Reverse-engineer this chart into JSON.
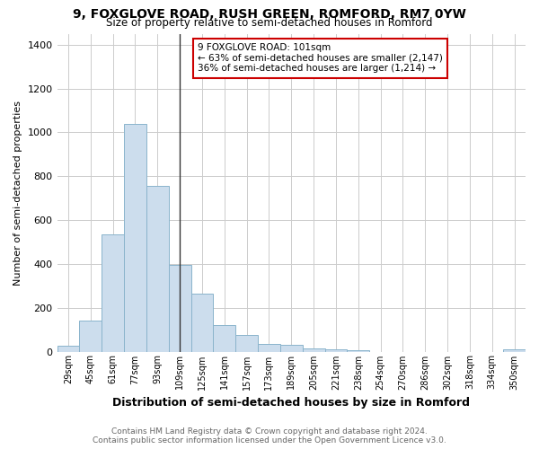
{
  "title": "9, FOXGLOVE ROAD, RUSH GREEN, ROMFORD, RM7 0YW",
  "subtitle": "Size of property relative to semi-detached houses in Romford",
  "xlabel": "Distribution of semi-detached houses by size in Romford",
  "ylabel": "Number of semi-detached properties",
  "footer_line1": "Contains HM Land Registry data © Crown copyright and database right 2024.",
  "footer_line2": "Contains public sector information licensed under the Open Government Licence v3.0.",
  "annotation_line1": "9 FOXGLOVE ROAD: 101sqm",
  "annotation_line2": "← 63% of semi-detached houses are smaller (2,147)",
  "annotation_line3": "36% of semi-detached houses are larger (1,214) →",
  "property_size_idx": 5,
  "bar_color": "#ccdded",
  "bar_edge_color": "#8ab4cc",
  "property_line_color": "#333333",
  "annotation_box_edgecolor": "#cc0000",
  "categories": [
    "29sqm",
    "45sqm",
    "61sqm",
    "77sqm",
    "93sqm",
    "109sqm",
    "125sqm",
    "141sqm",
    "157sqm",
    "173sqm",
    "189sqm",
    "205sqm",
    "221sqm",
    "238sqm",
    "254sqm",
    "270sqm",
    "286sqm",
    "302sqm",
    "318sqm",
    "334sqm",
    "350sqm"
  ],
  "values": [
    25,
    140,
    535,
    1040,
    755,
    395,
    265,
    120,
    75,
    35,
    30,
    15,
    10,
    5,
    0,
    0,
    0,
    0,
    0,
    0,
    10
  ],
  "ylim": [
    0,
    1450
  ],
  "yticks": [
    0,
    200,
    400,
    600,
    800,
    1000,
    1200,
    1400
  ],
  "n_bins": 21,
  "grid_color": "#cccccc",
  "fig_width": 6.0,
  "fig_height": 5.0,
  "dpi": 100
}
